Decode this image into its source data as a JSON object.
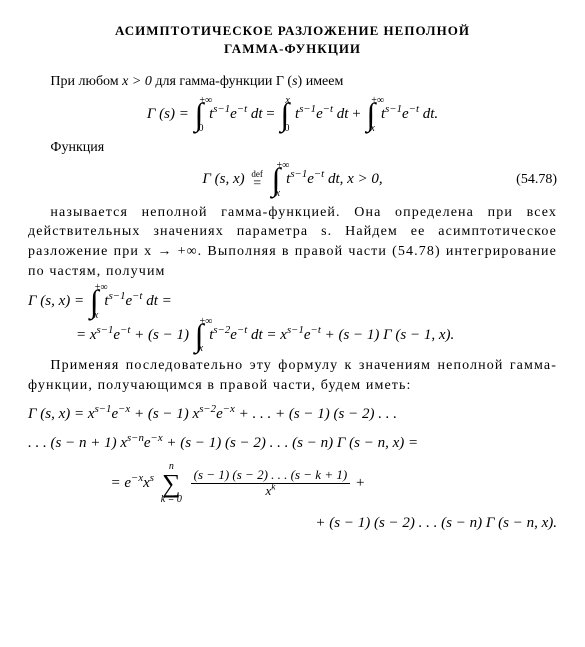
{
  "title_l1": "АСИМПТОТИЧЕСКОЕ РАЗЛОЖЕНИЕ НЕПОЛНОЙ",
  "title_l2": "ГАММА-ФУНКЦИИ",
  "p1_a": "При любом ",
  "p1_b": " для гамма-функции Γ (",
  "p1_c": ") имеем",
  "xgt0": "x > 0",
  "s": "s",
  "eq1_lhs": "Γ (s) =",
  "eq1_arg": " t",
  "eq1_sup": "s−1",
  "eq1_e": "e",
  "eq1_mt": "−t",
  "eq1_dt": " dt",
  "eq1_eq": " = ",
  "eq1_plus": " + ",
  "eq1_end": " dt.",
  "int_inf": "+∞",
  "int_0": "0",
  "int_x": "x",
  "p2": "Функция",
  "eq2_lhs": "Γ (s,  x) ",
  "eq2_def_top": "def",
  "eq2_def_bot": "=",
  "eq2_xgt": " dt,    x > 0,",
  "eq2_num": "(54.78)",
  "p3": "называется неполной гамма-функцией. Она определена при всех действительных значениях параметра s. Найдем ее асимптотическое разложение при x → +∞. Выполняя в правой части (54.78) интегрирование по частям, получим",
  "eq3_l1_lhs": "Γ (s,  x) = ",
  "eq3_l1_end": " dt =",
  "eq3_l2_a": "= x",
  "eq3_l2_sup1": "s−1",
  "eq3_l2_b": "e",
  "eq3_l2_c": " + (s − 1) ",
  "eq3_l2_sup2": "s−2",
  "eq3_l2_d": " dt = x",
  "eq3_l2_e": " + (s − 1) Γ (s − 1,  x).",
  "p4": "Применяя последовательно эту формулу к значениям неполной гамма-функции, получающимся в правой части, будем иметь:",
  "eq4_l1": "Γ (s,  x) = x",
  "eq4_l1_sa": "s−1",
  "eq4_l1_b": "e",
  "eq4_l1_mx": "−x",
  "eq4_l1_c": " + (s − 1) x",
  "eq4_l1_sb": "s−2",
  "eq4_l1_d": "e",
  "eq4_l1_e": " + . . . + (s − 1) (s − 2) . . .",
  "eq4_l2_a": ". . . (s − n + 1) x",
  "eq4_l2_sup": "s−n",
  "eq4_l2_b": "e",
  "eq4_l2_c": " + (s − 1) (s − 2) . . . (s − n) Γ (s − n,  x) =",
  "eq4_l3_a": "= e",
  "eq4_l3_b": "x",
  "eq4_l3_ss": "s",
  "eq4_l3_c": " ",
  "sum_top": "n",
  "sum_bot": "k = 0",
  "frac_num": "(s − 1) (s − 2) . . . (s − k + 1)",
  "frac_den": "x",
  "frac_den_sup": "k",
  "eq4_l3_plus": " +",
  "eq4_l4": "+ (s − 1) (s − 2) . . . (s − n) Γ (s − n,  x)."
}
